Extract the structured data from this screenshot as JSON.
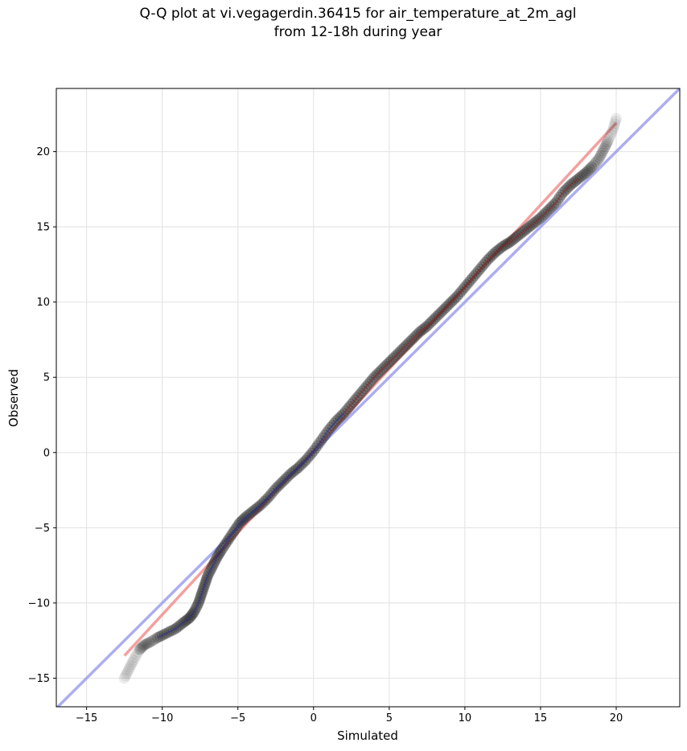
{
  "chart_data": {
    "type": "scatter",
    "title_line1": "Q-Q plot at vi.vegagerdin.36415 for air_temperature_at_2m_agl",
    "title_line2": "from 12-18h during year",
    "xlabel": "Simulated",
    "ylabel": "Observed",
    "xlim": [
      -17,
      24.2
    ],
    "ylim": [
      -16.9,
      24.2
    ],
    "xticks": [
      -15,
      -10,
      -5,
      0,
      5,
      10,
      15,
      20
    ],
    "yticks": [
      -15,
      -10,
      -5,
      0,
      5,
      10,
      15,
      20
    ],
    "xtick_labels": [
      "−15",
      "−10",
      "−5",
      "0",
      "5",
      "10",
      "15",
      "20"
    ],
    "ytick_labels": [
      "−15",
      "−10",
      "−5",
      "0",
      "5",
      "10",
      "15",
      "20"
    ],
    "grid": true,
    "series": [
      {
        "role": "quantiles",
        "color": "#222222",
        "points": [
          [
            -12.5,
            -15.0
          ],
          [
            -12.2,
            -14.4
          ],
          [
            -11.9,
            -13.8
          ],
          [
            -11.5,
            -13.1
          ],
          [
            -11.2,
            -12.8
          ],
          [
            -10.8,
            -12.6
          ],
          [
            -10.3,
            -12.3
          ],
          [
            -9.7,
            -12.0
          ],
          [
            -9.1,
            -11.7
          ],
          [
            -8.6,
            -11.3
          ],
          [
            -8.2,
            -11.0
          ],
          [
            -7.9,
            -10.6
          ],
          [
            -7.6,
            -10.0
          ],
          [
            -7.4,
            -9.4
          ],
          [
            -7.2,
            -8.8
          ],
          [
            -7.0,
            -8.2
          ],
          [
            -6.7,
            -7.6
          ],
          [
            -6.4,
            -7.0
          ],
          [
            -6.1,
            -6.5
          ],
          [
            -5.7,
            -5.9
          ],
          [
            -5.3,
            -5.3
          ],
          [
            -4.9,
            -4.7
          ],
          [
            -4.5,
            -4.3
          ],
          [
            -4.0,
            -3.9
          ],
          [
            -3.5,
            -3.5
          ],
          [
            -3.0,
            -3.0
          ],
          [
            -2.5,
            -2.4
          ],
          [
            -2.0,
            -1.9
          ],
          [
            -1.5,
            -1.4
          ],
          [
            -1.0,
            -1.0
          ],
          [
            -0.5,
            -0.5
          ],
          [
            0.0,
            0.1
          ],
          [
            0.5,
            0.8
          ],
          [
            1.0,
            1.5
          ],
          [
            1.5,
            2.1
          ],
          [
            2.0,
            2.6
          ],
          [
            2.5,
            3.2
          ],
          [
            3.0,
            3.8
          ],
          [
            3.5,
            4.4
          ],
          [
            4.0,
            5.0
          ],
          [
            4.5,
            5.5
          ],
          [
            5.0,
            6.0
          ],
          [
            5.5,
            6.5
          ],
          [
            6.0,
            7.0
          ],
          [
            6.5,
            7.5
          ],
          [
            7.0,
            8.0
          ],
          [
            7.5,
            8.4
          ],
          [
            8.0,
            8.9
          ],
          [
            8.5,
            9.4
          ],
          [
            9.0,
            9.9
          ],
          [
            9.5,
            10.4
          ],
          [
            10.0,
            11.0
          ],
          [
            10.5,
            11.6
          ],
          [
            11.0,
            12.2
          ],
          [
            11.5,
            12.8
          ],
          [
            12.0,
            13.3
          ],
          [
            12.5,
            13.7
          ],
          [
            13.0,
            14.0
          ],
          [
            13.5,
            14.4
          ],
          [
            14.0,
            14.8
          ],
          [
            14.5,
            15.2
          ],
          [
            15.0,
            15.6
          ],
          [
            15.5,
            16.1
          ],
          [
            16.0,
            16.6
          ],
          [
            16.5,
            17.3
          ],
          [
            17.0,
            17.8
          ],
          [
            17.5,
            18.2
          ],
          [
            18.0,
            18.6
          ],
          [
            18.5,
            19.1
          ],
          [
            18.9,
            19.6
          ],
          [
            19.2,
            20.2
          ],
          [
            19.5,
            20.8
          ],
          [
            19.8,
            21.5
          ],
          [
            20.0,
            22.2
          ]
        ]
      },
      {
        "role": "fit-line",
        "color": "#f08080",
        "points": [
          [
            -12.5,
            -13.5
          ],
          [
            20.0,
            21.9
          ]
        ]
      },
      {
        "role": "one-to-one-line",
        "color": "#9999ee",
        "points": [
          [
            -17,
            -17
          ],
          [
            24.2,
            24.2
          ]
        ]
      }
    ]
  }
}
